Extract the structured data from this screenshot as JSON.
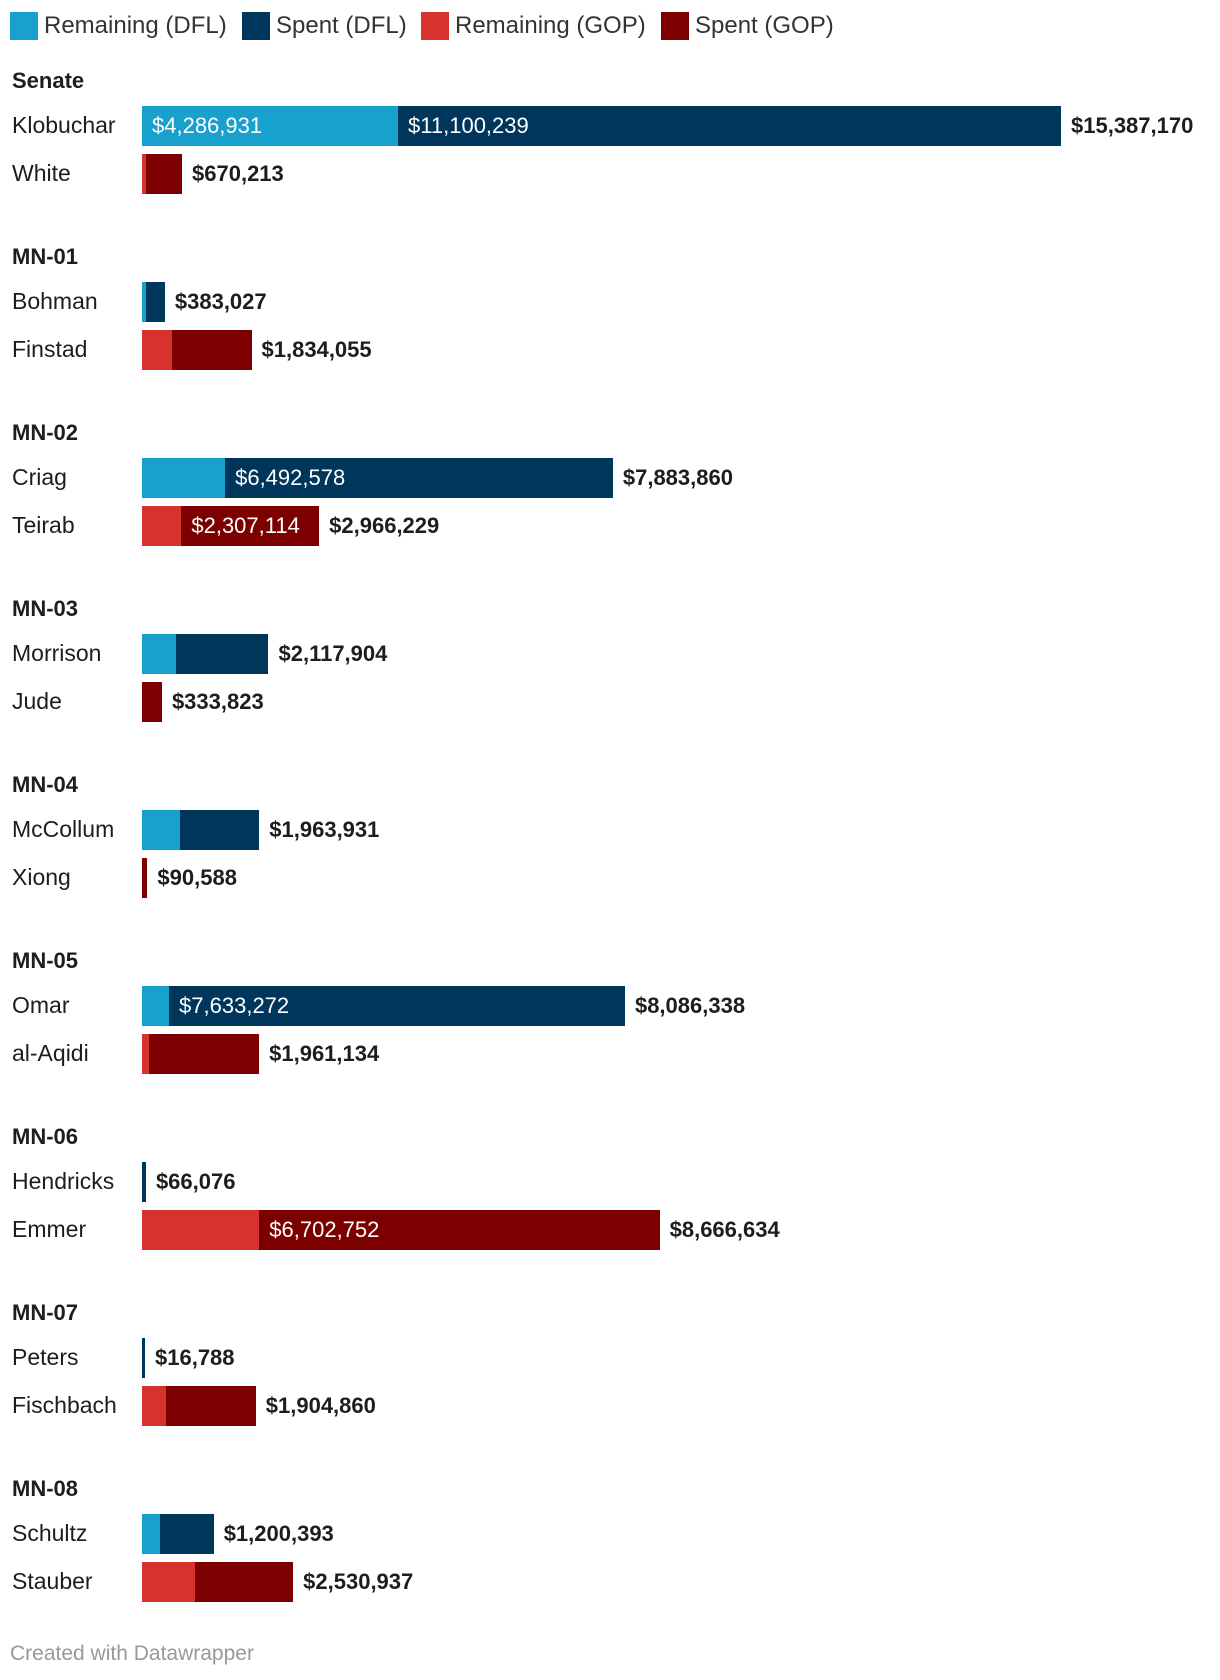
{
  "chart_data": {
    "type": "bar",
    "orientation": "horizontal",
    "stacked": true,
    "series": [
      {
        "key": "rem_dfl",
        "name": "Remaining (DFL)",
        "color": "#18a1cd"
      },
      {
        "key": "spent_dfl",
        "name": "Spent (DFL)",
        "color": "#00365c"
      },
      {
        "key": "rem_gop",
        "name": "Remaining (GOP)",
        "color": "#d8322d"
      },
      {
        "key": "spent_gop",
        "name": "Spent (GOP)",
        "color": "#7d0000"
      }
    ],
    "groups": [
      {
        "title": "Senate",
        "rows": [
          {
            "name": "Klobuchar",
            "party": "DFL",
            "remaining": 4286931,
            "spent": 11100239,
            "total": 15387170,
            "remaining_label": "$4,286,931",
            "spent_label": "$11,100,239",
            "total_label": "$15,387,170"
          },
          {
            "name": "White",
            "party": "GOP",
            "remaining": 70213,
            "spent": 600000,
            "total": 670213,
            "remaining_label": "",
            "spent_label": "",
            "total_label": "$670,213"
          }
        ]
      },
      {
        "title": "MN-01",
        "rows": [
          {
            "name": "Bohman",
            "party": "DFL",
            "remaining": 60000,
            "spent": 323027,
            "total": 383027,
            "remaining_label": "",
            "spent_label": "",
            "total_label": "$383,027"
          },
          {
            "name": "Finstad",
            "party": "GOP",
            "remaining": 500000,
            "spent": 1334055,
            "total": 1834055,
            "remaining_label": "",
            "spent_label": "",
            "total_label": "$1,834,055"
          }
        ]
      },
      {
        "title": "MN-02",
        "rows": [
          {
            "name": "Criag",
            "party": "DFL",
            "remaining": 1391282,
            "spent": 6492578,
            "total": 7883860,
            "remaining_label": "",
            "spent_label": "$6,492,578",
            "total_label": "$7,883,860"
          },
          {
            "name": "Teirab",
            "party": "GOP",
            "remaining": 659115,
            "spent": 2307114,
            "total": 2966229,
            "remaining_label": "",
            "spent_label": "$2,307,114",
            "total_label": "$2,966,229"
          }
        ]
      },
      {
        "title": "MN-03",
        "rows": [
          {
            "name": "Morrison",
            "party": "DFL",
            "remaining": 570000,
            "spent": 1547904,
            "total": 2117904,
            "remaining_label": "",
            "spent_label": "",
            "total_label": "$2,117,904"
          },
          {
            "name": "Jude",
            "party": "GOP",
            "remaining": 0,
            "spent": 333823,
            "total": 333823,
            "remaining_label": "",
            "spent_label": "",
            "total_label": "$333,823"
          }
        ]
      },
      {
        "title": "MN-04",
        "rows": [
          {
            "name": "McCollum",
            "party": "DFL",
            "remaining": 640000,
            "spent": 1323931,
            "total": 1963931,
            "remaining_label": "",
            "spent_label": "",
            "total_label": "$1,963,931"
          },
          {
            "name": "Xiong",
            "party": "GOP",
            "remaining": 0,
            "spent": 90588,
            "total": 90588,
            "remaining_label": "",
            "spent_label": "",
            "total_label": "$90,588"
          }
        ]
      },
      {
        "title": "MN-05",
        "rows": [
          {
            "name": "Omar",
            "party": "DFL",
            "remaining": 453066,
            "spent": 7633272,
            "total": 8086338,
            "remaining_label": "",
            "spent_label": "$7,633,272",
            "total_label": "$8,086,338"
          },
          {
            "name": "al-Aqidi",
            "party": "GOP",
            "remaining": 120000,
            "spent": 1841134,
            "total": 1961134,
            "remaining_label": "",
            "spent_label": "",
            "total_label": "$1,961,134"
          }
        ]
      },
      {
        "title": "MN-06",
        "rows": [
          {
            "name": "Hendricks",
            "party": "DFL",
            "remaining": 0,
            "spent": 66076,
            "total": 66076,
            "remaining_label": "",
            "spent_label": "",
            "total_label": "$66,076"
          },
          {
            "name": "Emmer",
            "party": "GOP",
            "remaining": 1963882,
            "spent": 6702752,
            "total": 8666634,
            "remaining_label": "",
            "spent_label": "$6,702,752",
            "total_label": "$8,666,634"
          }
        ]
      },
      {
        "title": "MN-07",
        "rows": [
          {
            "name": "Peters",
            "party": "DFL",
            "remaining": 0,
            "spent": 16788,
            "total": 16788,
            "remaining_label": "",
            "spent_label": "",
            "total_label": "$16,788"
          },
          {
            "name": "Fischbach",
            "party": "GOP",
            "remaining": 410000,
            "spent": 1494860,
            "total": 1904860,
            "remaining_label": "",
            "spent_label": "",
            "total_label": "$1,904,860"
          }
        ]
      },
      {
        "title": "MN-08",
        "rows": [
          {
            "name": "Schultz",
            "party": "DFL",
            "remaining": 300000,
            "spent": 900393,
            "total": 1200393,
            "remaining_label": "",
            "spent_label": "",
            "total_label": "$1,200,393"
          },
          {
            "name": "Stauber",
            "party": "GOP",
            "remaining": 880000,
            "spent": 1650937,
            "total": 2530937,
            "remaining_label": "",
            "spent_label": "",
            "total_label": "$2,530,937"
          }
        ]
      }
    ],
    "xlim": [
      0,
      15387170
    ],
    "grid": false,
    "legend_position": "top-left"
  },
  "credit": "Created with Datawrapper"
}
